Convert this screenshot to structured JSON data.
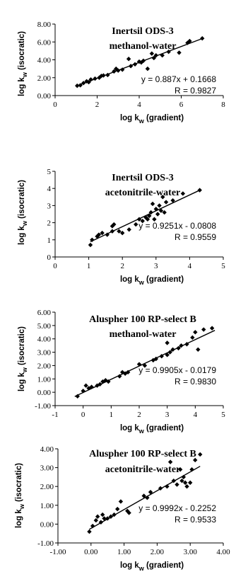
{
  "chart_data": [
    {
      "type": "scatter",
      "title": "Inertsil ODS-3",
      "subtitle": "methanol-water",
      "xlabel": "log k",
      "xlabel_sub": "w",
      "xlabel_suffix": " (gradient)",
      "ylabel": "log k",
      "ylabel_sub": "w",
      "ylabel_suffix": " (isocratic)",
      "xlim": [
        0,
        8
      ],
      "ylim": [
        0,
        8
      ],
      "xticks": [
        0,
        2,
        4,
        6,
        8
      ],
      "xtick_labels": [
        "0",
        "2",
        "4",
        "6",
        "8"
      ],
      "yticks": [
        0,
        2,
        4,
        6,
        8
      ],
      "ytick_labels": [
        "0.00",
        "2.00",
        "4.00",
        "6.00",
        "8.00"
      ],
      "equation": "y = 0.887x + 0.1668",
      "r_text": "R = 0.9827",
      "trendline": {
        "slope": 0.887,
        "intercept": 0.1668,
        "x_range": [
          1.0,
          7.0
        ]
      },
      "x": [
        1.05,
        1.2,
        1.35,
        1.5,
        1.6,
        1.7,
        1.9,
        2.1,
        2.2,
        2.3,
        2.5,
        2.8,
        2.9,
        3.0,
        3.2,
        3.5,
        3.6,
        3.8,
        4.0,
        4.1,
        4.2,
        4.4,
        4.6,
        4.7,
        4.8,
        5.1,
        5.4,
        5.9,
        6.3,
        6.4,
        7.0
      ],
      "y": [
        1.1,
        1.15,
        1.4,
        1.6,
        1.5,
        1.8,
        1.9,
        2.0,
        2.2,
        2.25,
        2.3,
        2.7,
        3.0,
        2.8,
        2.9,
        4.1,
        3.3,
        3.5,
        3.8,
        3.7,
        3.9,
        3.0,
        4.7,
        4.2,
        4.5,
        4.5,
        4.9,
        4.8,
        5.9,
        6.1,
        6.4
      ],
      "grid": false
    },
    {
      "type": "scatter",
      "title": "Inertsil ODS-3",
      "subtitle": "acetonitrile-water",
      "xlabel": "log k",
      "xlabel_sub": "w",
      "xlabel_suffix": " (gradient)",
      "ylabel": "log k",
      "ylabel_sub": "w",
      "ylabel_suffix": " (isocratic)",
      "xlim": [
        0,
        5
      ],
      "ylim": [
        0,
        5
      ],
      "xticks": [
        0,
        1,
        2,
        3,
        4,
        5
      ],
      "xtick_labels": [
        "0",
        "1",
        "2",
        "3",
        "4",
        "5"
      ],
      "yticks": [
        0,
        1,
        2,
        3,
        4,
        5
      ],
      "ytick_labels": [
        "0",
        "1",
        "2",
        "3",
        "4",
        "5"
      ],
      "equation": "y = 0.9251x - 0.0808",
      "r_text": "R = 0.9559",
      "trendline": {
        "slope": 0.9251,
        "intercept": -0.0808,
        "x_range": [
          1.05,
          4.3
        ]
      },
      "x": [
        1.05,
        1.1,
        1.25,
        1.3,
        1.4,
        1.55,
        1.7,
        1.7,
        1.75,
        1.9,
        2.0,
        2.2,
        2.4,
        2.5,
        2.6,
        2.7,
        2.75,
        2.8,
        2.85,
        2.9,
        2.95,
        3.0,
        3.05,
        3.1,
        3.15,
        3.2,
        3.25,
        3.3,
        3.5,
        3.8,
        4.3
      ],
      "y": [
        0.7,
        1.0,
        1.2,
        1.3,
        1.4,
        1.3,
        1.5,
        1.8,
        1.9,
        1.5,
        1.4,
        1.6,
        1.9,
        2.2,
        2.1,
        2.3,
        2.2,
        2.4,
        2.6,
        3.1,
        2.2,
        2.8,
        2.5,
        3.0,
        2.7,
        3.5,
        2.6,
        3.2,
        3.3,
        3.7,
        3.9
      ],
      "grid": false
    },
    {
      "type": "scatter",
      "title": "Aluspher 100 RP-select B",
      "subtitle": "methanol-water",
      "xlabel": "log k",
      "xlabel_sub": "w",
      "xlabel_suffix": " (gradient)",
      "ylabel": "log k",
      "ylabel_sub": "w",
      "ylabel_suffix": " (isocratic)",
      "xlim": [
        -1,
        5
      ],
      "ylim": [
        -1,
        6
      ],
      "xticks": [
        -1,
        0,
        1,
        2,
        3,
        4,
        5
      ],
      "xtick_labels": [
        "-1",
        "0",
        "1",
        "2",
        "3",
        "4",
        "5"
      ],
      "yticks": [
        -1,
        0,
        1,
        2,
        3,
        4,
        5,
        6
      ],
      "ytick_labels": [
        "-1.00",
        "0.00",
        "1.00",
        "2.00",
        "3.00",
        "4.00",
        "5.00",
        "6.00"
      ],
      "equation": "y = 0.9905x - 0.0179",
      "r_text": "R = 0.9830",
      "trendline": {
        "slope": 0.9905,
        "intercept": -0.0179,
        "x_range": [
          -0.3,
          4.7
        ]
      },
      "x": [
        -0.2,
        0.0,
        0.1,
        0.2,
        0.3,
        0.5,
        0.6,
        0.7,
        0.8,
        0.9,
        1.3,
        1.4,
        1.5,
        1.6,
        2.0,
        2.2,
        2.5,
        2.6,
        2.8,
        3.0,
        3.0,
        3.1,
        3.2,
        3.4,
        3.5,
        3.7,
        3.9,
        4.0,
        4.1,
        4.3,
        4.6
      ],
      "y": [
        -0.3,
        0.1,
        0.5,
        0.3,
        0.4,
        0.5,
        0.6,
        0.8,
        0.9,
        0.8,
        1.2,
        1.5,
        1.4,
        1.5,
        2.1,
        2.0,
        2.4,
        2.5,
        2.7,
        3.7,
        2.8,
        3.0,
        3.2,
        3.3,
        3.5,
        3.6,
        4.1,
        4.5,
        3.2,
        4.7,
        4.8
      ],
      "grid": false
    },
    {
      "type": "scatter",
      "title": "Aluspher 100 RP-select B",
      "subtitle": "acetonitrile-water",
      "xlabel": "log k",
      "xlabel_sub": "w",
      "xlabel_suffix": " (gradient)",
      "ylabel": "log k",
      "ylabel_sub": "w",
      "ylabel_suffix": " (isocratic)",
      "xlim": [
        -1,
        4
      ],
      "ylim": [
        -1,
        4
      ],
      "xticks": [
        -1,
        0,
        1,
        2,
        3,
        4
      ],
      "xtick_labels": [
        "-1.00",
        "0.00",
        "1.00",
        "2.00",
        "3.00",
        "4.00"
      ],
      "yticks": [
        -1,
        0,
        1,
        2,
        3,
        4
      ],
      "ytick_labels": [
        "-1.00",
        "0.00",
        "1.00",
        "2.00",
        "3.00",
        "4.00"
      ],
      "equation": "y = 0.9992x - 0.2252",
      "r_text": "R = 0.9533",
      "trendline": {
        "slope": 0.9992,
        "intercept": -0.2252,
        "x_range": [
          -0.05,
          3.3
        ]
      },
      "x": [
        -0.05,
        0.05,
        0.15,
        0.2,
        0.3,
        0.35,
        0.4,
        0.5,
        0.6,
        0.7,
        0.8,
        0.9,
        1.1,
        1.15,
        1.6,
        1.7,
        1.8,
        2.1,
        2.3,
        2.4,
        2.5,
        2.6,
        2.7,
        2.75,
        2.8,
        2.85,
        2.9,
        3.0,
        3.05,
        3.15,
        3.3
      ],
      "y": [
        -0.4,
        -0.1,
        0.2,
        0.4,
        0.1,
        0.5,
        0.3,
        0.3,
        0.4,
        0.5,
        0.8,
        1.2,
        0.7,
        0.6,
        1.5,
        1.4,
        1.7,
        1.9,
        2.0,
        3.3,
        2.3,
        2.1,
        2.9,
        2.3,
        2.5,
        2.2,
        2.0,
        2.2,
        2.9,
        3.4,
        3.7
      ],
      "grid": false
    }
  ]
}
